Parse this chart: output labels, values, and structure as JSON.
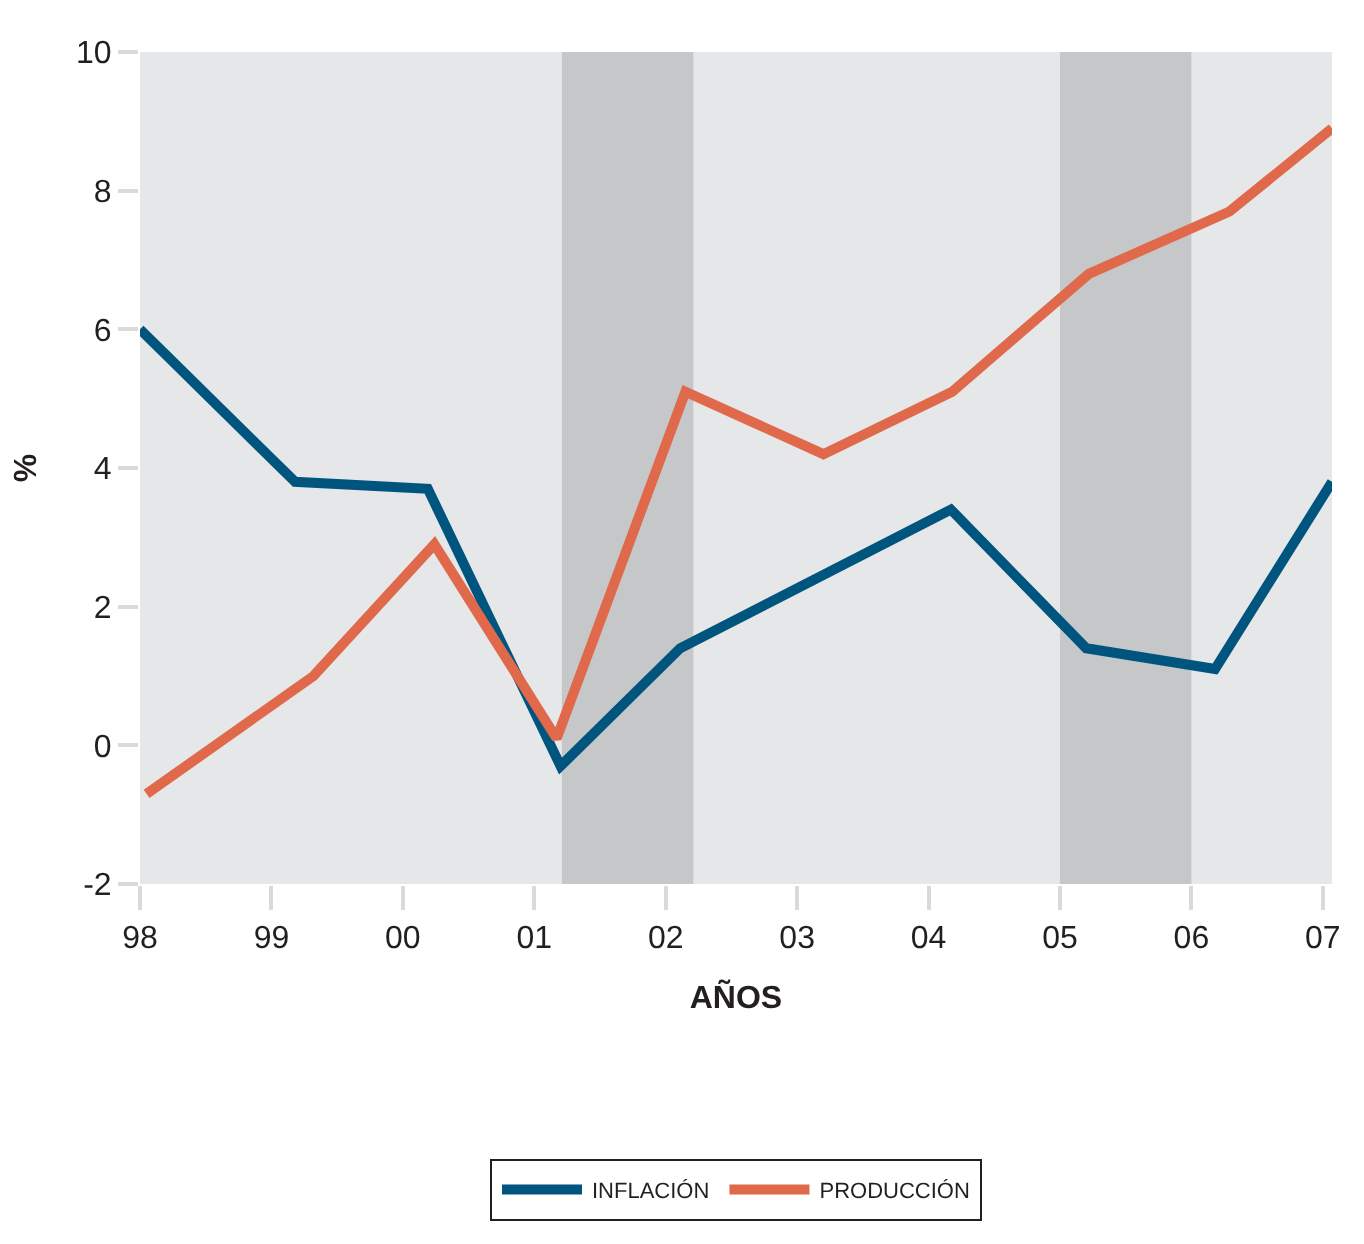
{
  "chart_data": {
    "type": "line",
    "xlabel": "AÑOS",
    "ylabel": "%",
    "xlim": [
      1998,
      2007.07
    ],
    "ylim": [
      -2,
      10
    ],
    "xticks": [
      {
        "value": 1998,
        "label": "98"
      },
      {
        "value": 1999,
        "label": "99"
      },
      {
        "value": 2000,
        "label": "00"
      },
      {
        "value": 2001,
        "label": "01"
      },
      {
        "value": 2002,
        "label": "02"
      },
      {
        "value": 2003,
        "label": "03"
      },
      {
        "value": 2004,
        "label": "04"
      },
      {
        "value": 2005,
        "label": "05"
      },
      {
        "value": 2006,
        "label": "06"
      },
      {
        "value": 2007,
        "label": "07"
      }
    ],
    "yticks": [
      -2,
      0,
      2,
      4,
      6,
      8,
      10
    ],
    "series": [
      {
        "name": "INFLACIÓN",
        "color": "#00557f",
        "x": [
          1998,
          1999.18,
          2000.19,
          2001.2,
          2002.11,
          2004.17,
          2005.2,
          2006.18,
          2007.07
        ],
        "values": [
          6.0,
          3.8,
          3.7,
          -0.3,
          1.4,
          3.4,
          1.4,
          1.1,
          3.8
        ]
      },
      {
        "name": "PRODUCCIÓN",
        "color": "#e0684b",
        "x": [
          1998.05,
          1999.32,
          2000.24,
          2001.17,
          2002.15,
          2003.2,
          2004.18,
          2005.22,
          2006.29,
          2007.07
        ],
        "values": [
          -0.7,
          1.0,
          2.9,
          0.1,
          5.1,
          4.2,
          5.1,
          6.8,
          7.7,
          8.9
        ]
      }
    ],
    "bands": [
      {
        "axis": "x",
        "from": 2001.21,
        "to": 2002.21,
        "color": "#c6c7c9"
      },
      {
        "axis": "x",
        "from": 2005.0,
        "to": 2006.0,
        "color": "#c6c7c9"
      }
    ],
    "grid": false,
    "legend": "bottom",
    "line_style": "solid",
    "marker": "none"
  }
}
